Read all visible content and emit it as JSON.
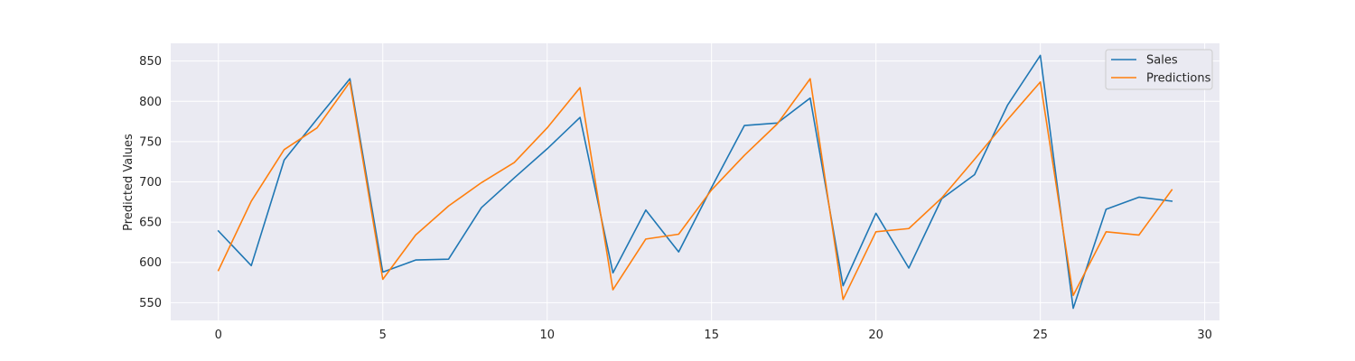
{
  "chart_data": {
    "type": "line",
    "title": "",
    "xlabel": "",
    "ylabel": "Predicted Values",
    "xlim": [
      -1.45,
      30.45
    ],
    "ylim": [
      528,
      872
    ],
    "x_ticks": [
      0,
      5,
      10,
      15,
      20,
      25,
      30
    ],
    "y_ticks": [
      550,
      600,
      650,
      700,
      750,
      800,
      850
    ],
    "grid": true,
    "style": "seaborn-darkgrid",
    "legend_position": "top-right",
    "x": [
      0,
      1,
      2,
      3,
      4,
      5,
      6,
      7,
      8,
      9,
      10,
      11,
      12,
      13,
      14,
      15,
      16,
      17,
      18,
      19,
      20,
      21,
      22,
      23,
      24,
      25,
      26,
      27,
      28,
      29
    ],
    "series": [
      {
        "name": "Sales",
        "color": "#1f77b4",
        "values": [
          639,
          596,
          727,
          778,
          828,
          588,
          603,
          604,
          668,
          705,
          741,
          780,
          587,
          665,
          613,
          693,
          770,
          773,
          804,
          571,
          661,
          593,
          679,
          709,
          795,
          857,
          543,
          666,
          681,
          676
        ]
      },
      {
        "name": "Predictions",
        "color": "#ff7f0e",
        "values": [
          590,
          676,
          740,
          767,
          824,
          579,
          634,
          670,
          699,
          724,
          767,
          817,
          566,
          629,
          635,
          690,
          733,
          772,
          828,
          554,
          638,
          642,
          680,
          728,
          777,
          824,
          559,
          638,
          634,
          690
        ]
      }
    ]
  }
}
